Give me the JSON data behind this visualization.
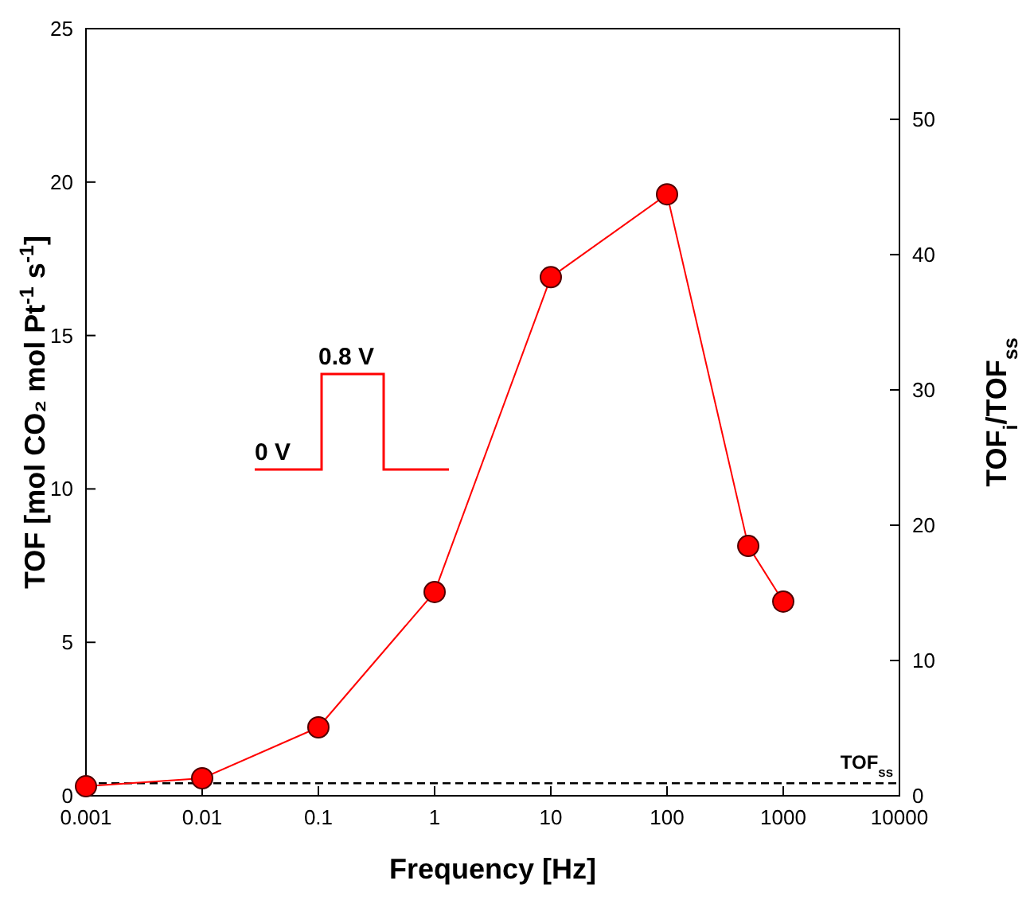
{
  "chart_data": {
    "type": "line",
    "xlabel": "Frequency [Hz]",
    "ylabel": "TOF [mol CO₂ mol Pt$^{-1}$ s$^{-1}$]",
    "y2label": "TOF$_{i}$/TOF$_{ss}$",
    "x": [
      0.001,
      0.01,
      0.1,
      1,
      10,
      100,
      500,
      1000
    ],
    "series": [
      {
        "color": "#ff0000",
        "values": [
          0.31,
          0.57,
          2.23,
          6.64,
          16.9,
          19.6,
          8.14,
          6.33
        ]
      }
    ],
    "log": "x",
    "xlim": [
      0.001,
      10000
    ],
    "xticks": [
      0.001,
      0.01,
      0.1,
      1,
      10,
      100,
      1000,
      10000
    ],
    "ylim": [
      0,
      25
    ],
    "yticks": [
      0,
      5,
      10,
      15,
      20,
      25
    ],
    "y2lim": [
      0,
      56.7
    ],
    "y2ticks": [
      0,
      10,
      20,
      30,
      40,
      50
    ],
    "marker": "circle",
    "line_style": "solid",
    "grid": false,
    "ref_lines": [
      {
        "axis": "y",
        "value": 0.41,
        "label": "TOF$_{ss}$",
        "line_style": "dashed",
        "color": "#000000"
      }
    ],
    "annotations": [
      "0 V",
      "0.8 V"
    ]
  }
}
